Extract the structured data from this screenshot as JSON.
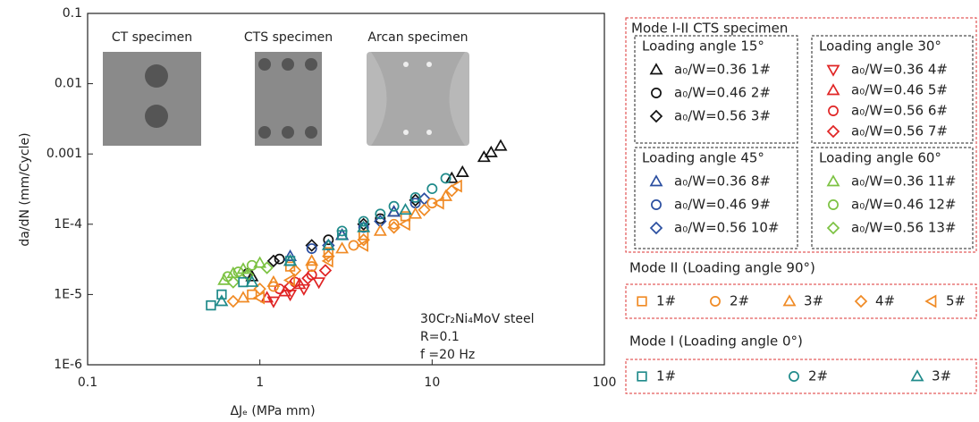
{
  "chart_data": {
    "type": "scatter",
    "xlabel": "ΔJₑ (MPa mm)",
    "ylabel": "da/dN (mm/Cycle)",
    "log_x": true,
    "log_y": true,
    "xlim": [
      0.1,
      100
    ],
    "ylim": [
      1e-06,
      0.1
    ],
    "xticks": [
      0.1,
      1,
      10,
      100
    ],
    "yticks": [
      {
        "value": 1e-06,
        "label": "1E-6"
      },
      {
        "value": 1e-05,
        "label": "1E-5"
      },
      {
        "value": 0.0001,
        "label": "1E-4"
      },
      0.001,
      0.01,
      0.1
    ],
    "images": [
      "CT specimen",
      "CTS specimen",
      "Arcan specimen"
    ],
    "annotation": [
      "30Cr₂Ni₄MoV steel",
      "R=0.1",
      "f =20 Hz"
    ],
    "series_groups": [
      {
        "title": "Mode I-II CTS specimen",
        "groups": [
          {
            "title": "Loading angle 15°",
            "series": [
              {
                "name": "a₀/W=0.36 1#",
                "color": "#111111",
                "marker": "triangle-up",
                "x": [
                  0.9,
                  1.5,
                  3,
                  6,
                  13,
                  15,
                  20,
                  22,
                  25
                ],
                "y": [
                  1.8e-05,
                  3e-05,
                  7e-05,
                  0.00015,
                  0.00045,
                  0.00055,
                  0.0009,
                  0.00105,
                  0.0013
                ]
              },
              {
                "name": "a₀/W=0.46 2#",
                "color": "#111111",
                "marker": "circle",
                "x": [
                  0.85,
                  1.3,
                  2.5,
                  5
                ],
                "y": [
                  2e-05,
                  3.2e-05,
                  6e-05,
                  0.00012
                ]
              },
              {
                "name": "a₀/W=0.56 3#",
                "color": "#111111",
                "marker": "diamond",
                "x": [
                  1.2,
                  2,
                  4,
                  8
                ],
                "y": [
                  3e-05,
                  5e-05,
                  0.0001,
                  0.00022
                ]
              }
            ]
          },
          {
            "title": "Loading angle 30°",
            "series": [
              {
                "name": "a₀/W=0.36 4#",
                "color": "#e02424",
                "marker": "triangle-down",
                "x": [
                  1.2,
                  1.5,
                  1.8,
                  2.2
                ],
                "y": [
                  8e-06,
                  1e-05,
                  1.2e-05,
                  1.5e-05
                ]
              },
              {
                "name": "a₀/W=0.46 5#",
                "color": "#e02424",
                "marker": "triangle-up",
                "x": [
                  1.1,
                  1.4,
                  1.7
                ],
                "y": [
                  9e-06,
                  1.1e-05,
                  1.4e-05
                ]
              },
              {
                "name": "a₀/W=0.56 6#",
                "color": "#e02424",
                "marker": "circle",
                "x": [
                  1.3,
                  1.6,
                  2
                ],
                "y": [
                  1.2e-05,
                  1.5e-05,
                  1.9e-05
                ]
              },
              {
                "name": "a₀/W=0.56 7#",
                "color": "#e02424",
                "marker": "diamond",
                "x": [
                  1.5,
                  1.9,
                  2.4
                ],
                "y": [
                  1.3e-05,
                  1.7e-05,
                  2.2e-05
                ]
              }
            ]
          },
          {
            "title": "Loading angle 45°",
            "series": [
              {
                "name": "a₀/W=0.36 8#",
                "color": "#2a4ea0",
                "marker": "triangle-up",
                "x": [
                  1.5,
                  3,
                  6
                ],
                "y": [
                  3.5e-05,
                  7e-05,
                  0.00015
                ]
              },
              {
                "name": "a₀/W=0.46 9#",
                "color": "#2a4ea0",
                "marker": "circle",
                "x": [
                  2,
                  4,
                  8
                ],
                "y": [
                  4.5e-05,
                  9e-05,
                  0.0002
                ]
              },
              {
                "name": "a₀/W=0.56 10#",
                "color": "#2a4ea0",
                "marker": "diamond",
                "x": [
                  2.5,
                  5,
                  9
                ],
                "y": [
                  5e-05,
                  0.00011,
                  0.00023
                ]
              }
            ]
          },
          {
            "title": "Loading angle 60°",
            "series": [
              {
                "name": "a₀/W=0.36 11#",
                "color": "#7cc242",
                "marker": "triangle-up",
                "x": [
                  0.62,
                  0.7,
                  0.8,
                  1
                ],
                "y": [
                  1.6e-05,
                  2e-05,
                  2.3e-05,
                  2.8e-05
                ]
              },
              {
                "name": "a₀/W=0.46 12#",
                "color": "#7cc242",
                "marker": "circle",
                "x": [
                  0.65,
                  0.75,
                  0.9
                ],
                "y": [
                  1.8e-05,
                  2.1e-05,
                  2.6e-05
                ]
              },
              {
                "name": "a₀/W=0.56 13#",
                "color": "#7cc242",
                "marker": "diamond",
                "x": [
                  0.7,
                  0.85,
                  1.1
                ],
                "y": [
                  1.5e-05,
                  1.9e-05,
                  2.4e-05
                ]
              }
            ]
          }
        ]
      },
      {
        "title": "Mode II (Loading angle 90°)",
        "series": [
          {
            "name": "1#",
            "color": "#f08a24",
            "marker": "square",
            "x": [
              0.9,
              1.5,
              2.5,
              4,
              7
            ],
            "y": [
              1e-05,
              2.5e-05,
              4e-05,
              7e-05,
              0.00013
            ]
          },
          {
            "name": "2#",
            "color": "#f08a24",
            "marker": "circle",
            "x": [
              1.2,
              2,
              3.5,
              6,
              10
            ],
            "y": [
              1.3e-05,
              2.5e-05,
              5e-05,
              0.0001,
              0.0002
            ]
          },
          {
            "name": "3#",
            "color": "#f08a24",
            "marker": "triangle-up",
            "x": [
              0.8,
              1.2,
              2,
              3,
              5,
              8,
              12
            ],
            "y": [
              9e-06,
              1.5e-05,
              3e-05,
              4.5e-05,
              8e-05,
              0.00014,
              0.00025
            ]
          },
          {
            "name": "4#",
            "color": "#f08a24",
            "marker": "diamond",
            "x": [
              0.7,
              1,
              1.6,
              2.5,
              4,
              6,
              9,
              13
            ],
            "y": [
              8e-06,
              1.2e-05,
              2.2e-05,
              3.5e-05,
              6e-05,
              9e-05,
              0.00016,
              0.0003
            ]
          },
          {
            "name": "5#",
            "color": "#f08a24",
            "marker": "triangle-left",
            "x": [
              1,
              1.5,
              2.5,
              4,
              7,
              11,
              14
            ],
            "y": [
              9e-06,
              1.6e-05,
              3e-05,
              5e-05,
              0.0001,
              0.0002,
              0.00035
            ]
          }
        ]
      },
      {
        "title": "Mode I (Loading angle 0°)",
        "series": [
          {
            "name": "1#",
            "color": "#1f8a8a",
            "marker": "square",
            "x": [
              0.52,
              0.6,
              0.8,
              1.5,
              3
            ],
            "y": [
              7e-06,
              1e-05,
              1.5e-05,
              3e-05,
              7e-05
            ]
          },
          {
            "name": "2#",
            "color": "#1f8a8a",
            "marker": "circle",
            "x": [
              3,
              4,
              5,
              6,
              8,
              10,
              12
            ],
            "y": [
              8e-05,
              0.00011,
              0.00014,
              0.00018,
              0.00024,
              0.00032,
              0.00045
            ]
          },
          {
            "name": "3#",
            "color": "#1f8a8a",
            "marker": "triangle-up",
            "x": [
              0.6,
              0.9,
              1.5,
              2.5,
              4,
              7
            ],
            "y": [
              8e-06,
              1.5e-05,
              3e-05,
              5e-05,
              9e-05,
              0.00016
            ]
          }
        ]
      }
    ]
  }
}
